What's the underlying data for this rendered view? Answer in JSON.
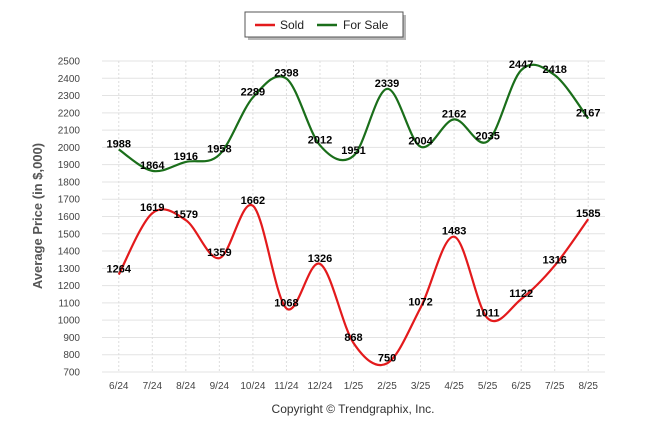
{
  "chart_data": {
    "type": "line",
    "categories": [
      "6/24",
      "7/24",
      "8/24",
      "9/24",
      "10/24",
      "11/24",
      "12/24",
      "1/25",
      "2/25",
      "3/25",
      "4/25",
      "5/25",
      "6/25",
      "7/25",
      "8/25"
    ],
    "series": [
      {
        "name": "Sold",
        "color": "#e31a1c",
        "values": [
          1264,
          1619,
          1579,
          1359,
          1662,
          1068,
          1326,
          868,
          750,
          1072,
          1483,
          1011,
          1122,
          1316,
          1585
        ]
      },
      {
        "name": "For Sale",
        "color": "#1a6e1a",
        "values": [
          1988,
          1864,
          1916,
          1958,
          2289,
          2398,
          2012,
          1951,
          2339,
          2004,
          2162,
          2035,
          2447,
          2418,
          2167
        ]
      }
    ],
    "ylabel": "Average Price (in $,000)",
    "xlabel": "",
    "ylim": [
      700,
      2500
    ],
    "yticks": [
      700,
      800,
      900,
      1000,
      1100,
      1200,
      1300,
      1400,
      1500,
      1600,
      1700,
      1800,
      1900,
      2000,
      2100,
      2200,
      2300,
      2400,
      2500
    ],
    "grid": true,
    "legend_position": "top-center",
    "footer": "Copyright © Trendgraphix, Inc."
  }
}
